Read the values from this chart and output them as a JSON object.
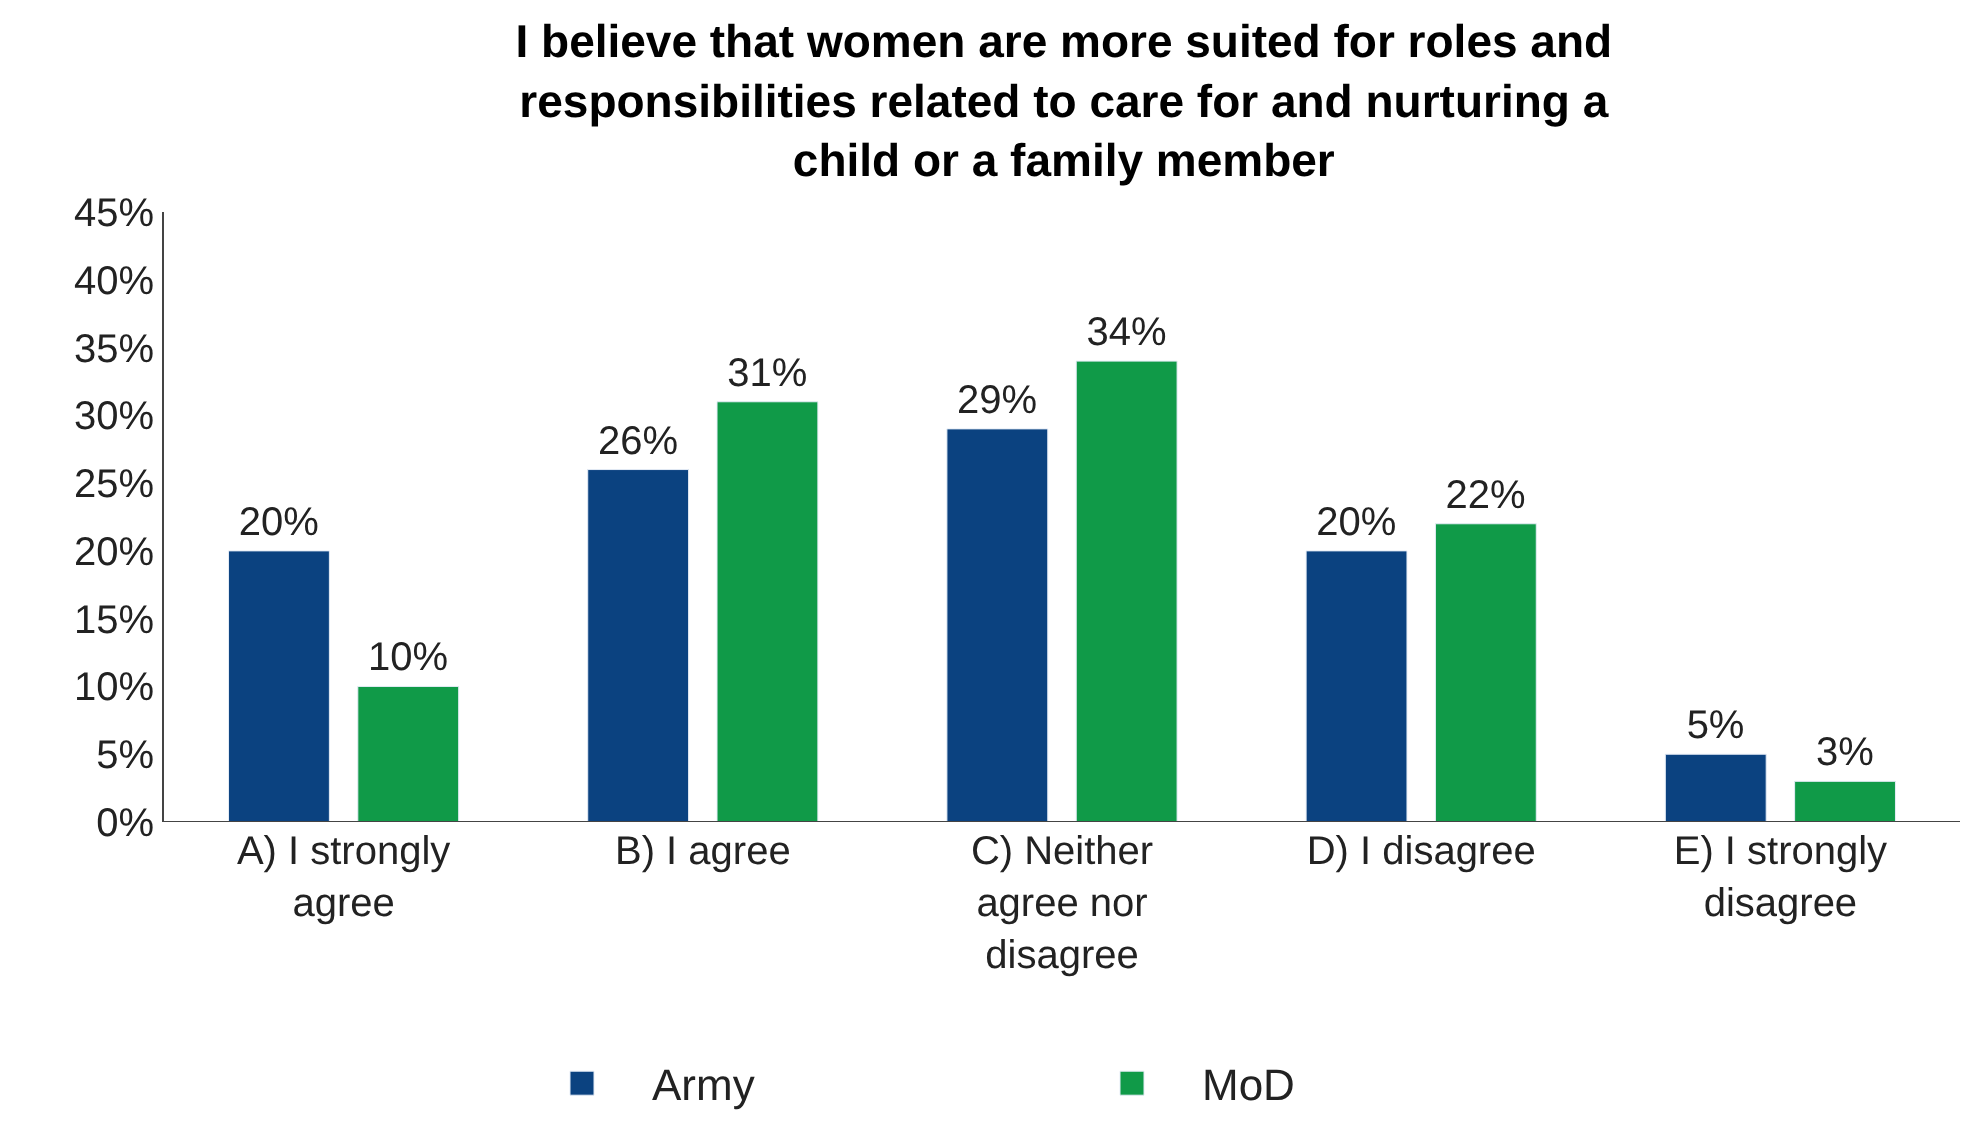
{
  "chart_data": {
    "type": "bar",
    "title": "I believe that women are more suited for roles and responsibilities related to care for and nurturing a child or a family member",
    "categories": [
      "A) I strongly agree",
      "B) I agree",
      "C) Neither agree nor disagree",
      "D) I disagree",
      "E) I strongly disagree"
    ],
    "series": [
      {
        "name": "Army",
        "color": "#0b4280",
        "values": [
          20,
          26,
          29,
          20,
          5
        ],
        "value_labels": [
          "20%",
          "26%",
          "29%",
          "20%",
          "5%"
        ]
      },
      {
        "name": "MoD",
        "color": "#109a48",
        "values": [
          10,
          31,
          34,
          22,
          3
        ],
        "value_labels": [
          "10%",
          "31%",
          "34%",
          "22%",
          "3%"
        ]
      }
    ],
    "ylim": [
      0,
      45
    ],
    "yticks": [
      {
        "value": 0,
        "label": "0%"
      },
      {
        "value": 5,
        "label": "5%"
      },
      {
        "value": 10,
        "label": "10%"
      },
      {
        "value": 15,
        "label": "15%"
      },
      {
        "value": 20,
        "label": "20%"
      },
      {
        "value": 25,
        "label": "25%"
      },
      {
        "value": 30,
        "label": "30%"
      },
      {
        "value": 35,
        "label": "35%"
      },
      {
        "value": 40,
        "label": "40%"
      },
      {
        "value": 45,
        "label": "45%"
      }
    ],
    "legend": "bottom"
  }
}
